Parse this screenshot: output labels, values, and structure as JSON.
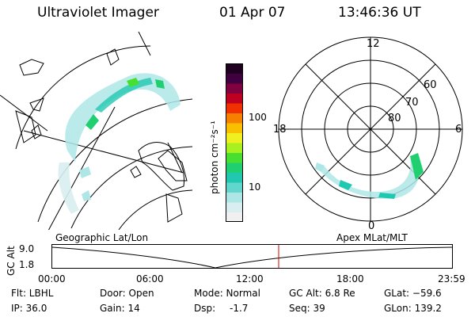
{
  "header": {
    "title": "Ultraviolet Imager",
    "date": "01 Apr 07",
    "time": "13:46:36 UT"
  },
  "colorbar": {
    "unit_label": "photon cm⁻²s⁻¹",
    "tick_100": "100",
    "tick_10": "10",
    "colors": [
      "#f0f0f0",
      "#d8eef0",
      "#aee6e6",
      "#60d6cc",
      "#20c8b0",
      "#20d070",
      "#48e030",
      "#a8f020",
      "#f0f020",
      "#f8c000",
      "#f88000",
      "#f03000",
      "#c00020",
      "#800040",
      "#400040",
      "#200020"
    ]
  },
  "polar_plot": {
    "mlt_labels": {
      "top": "12",
      "left": "18",
      "right": "6",
      "bottom": "0"
    },
    "lat_labels": {
      "outer": "60",
      "middle": "70",
      "inner": "80"
    }
  },
  "timeline": {
    "left_label": "Geographic Lat/Lon",
    "right_label": "Apex MLat/MLT",
    "y_axis_label": "GC Alt",
    "y_ticks": [
      "9.0",
      "1.8"
    ],
    "x_ticks": [
      "00:00",
      "06:00",
      "12:00",
      "18:00",
      "23:59"
    ],
    "marker_color": "#d00000"
  },
  "info": {
    "flt": "Flt: LBHL",
    "ip": "IP: 36.0",
    "door": "Door: Open",
    "gain": "Gain: 14",
    "mode": "Mode: Normal",
    "dsp_label": "Dsp:",
    "dsp_value": "-1.7",
    "gc_alt": "GC Alt: 6.8 Re",
    "seq": "Seq: 39",
    "glat": "GLat: −59.6",
    "glon": "GLon: 139.2"
  }
}
